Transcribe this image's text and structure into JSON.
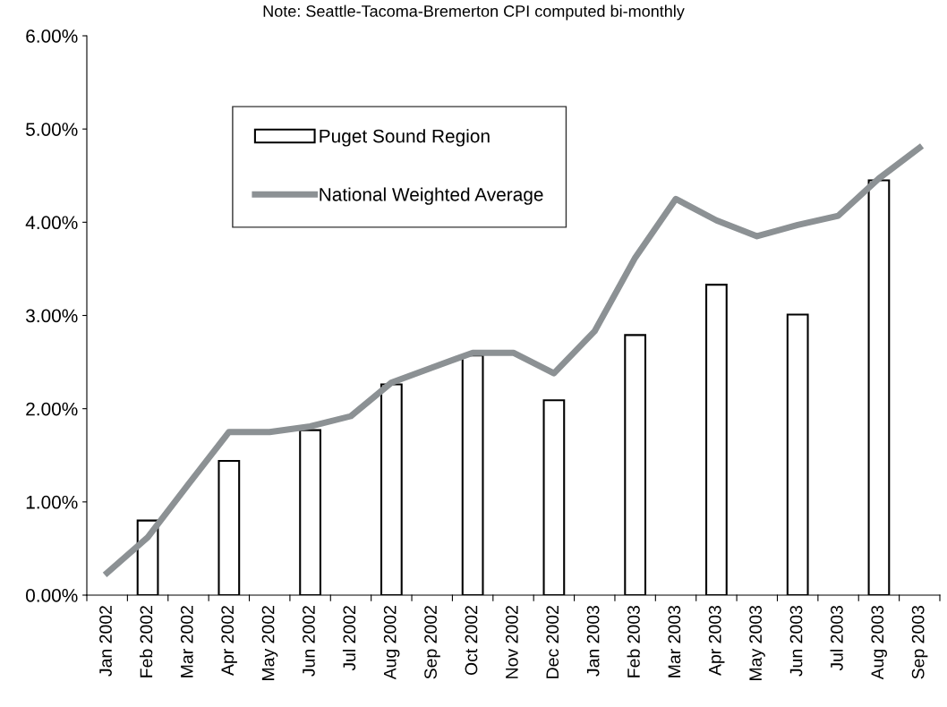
{
  "chart_data": {
    "type": "bar",
    "title": "Note: Seattle-Tacoma-Bremerton CPI computed bi-monthly",
    "categories": [
      "Jan 2002",
      "Feb 2002",
      "Mar 2002",
      "Apr 2002",
      "May 2002",
      "Jun 2002",
      "Jul 2002",
      "Aug 2002",
      "Sep 2002",
      "Oct 2002",
      "Nov 2002",
      "Dec 2002",
      "Jan 2003",
      "Feb 2003",
      "Mar 2003",
      "Apr 2003",
      "May 2003",
      "Jun 2003",
      "Jul 2003",
      "Aug 2003",
      "Sep 2003"
    ],
    "series": [
      {
        "name": "Puget Sound Region",
        "color": "#ffffff",
        "values": [
          null,
          0.8,
          null,
          1.44,
          null,
          1.77,
          null,
          2.26,
          null,
          2.57,
          null,
          2.09,
          null,
          2.79,
          null,
          3.33,
          null,
          3.01,
          null,
          4.45,
          null
        ]
      },
      {
        "name": "National Weighted Average",
        "type": "line",
        "color": "#8c9194",
        "values": [
          0.24,
          0.62,
          1.19,
          1.75,
          1.75,
          1.81,
          1.92,
          2.28,
          2.44,
          2.6,
          2.6,
          2.38,
          2.83,
          3.62,
          4.25,
          4.02,
          3.85,
          3.97,
          4.07,
          4.47,
          4.8
        ]
      }
    ],
    "ylim": [
      0,
      6
    ],
    "yticks": [
      {
        "value": 0,
        "label": "0.00%"
      },
      {
        "value": 1,
        "label": "1.00%"
      },
      {
        "value": 2,
        "label": "2.00%"
      },
      {
        "value": 3,
        "label": "3.00%"
      },
      {
        "value": 4,
        "label": "4.00%"
      },
      {
        "value": 5,
        "label": "5.00%"
      },
      {
        "value": 6,
        "label": "6.00%"
      }
    ],
    "grid": false,
    "legend": "top left"
  }
}
